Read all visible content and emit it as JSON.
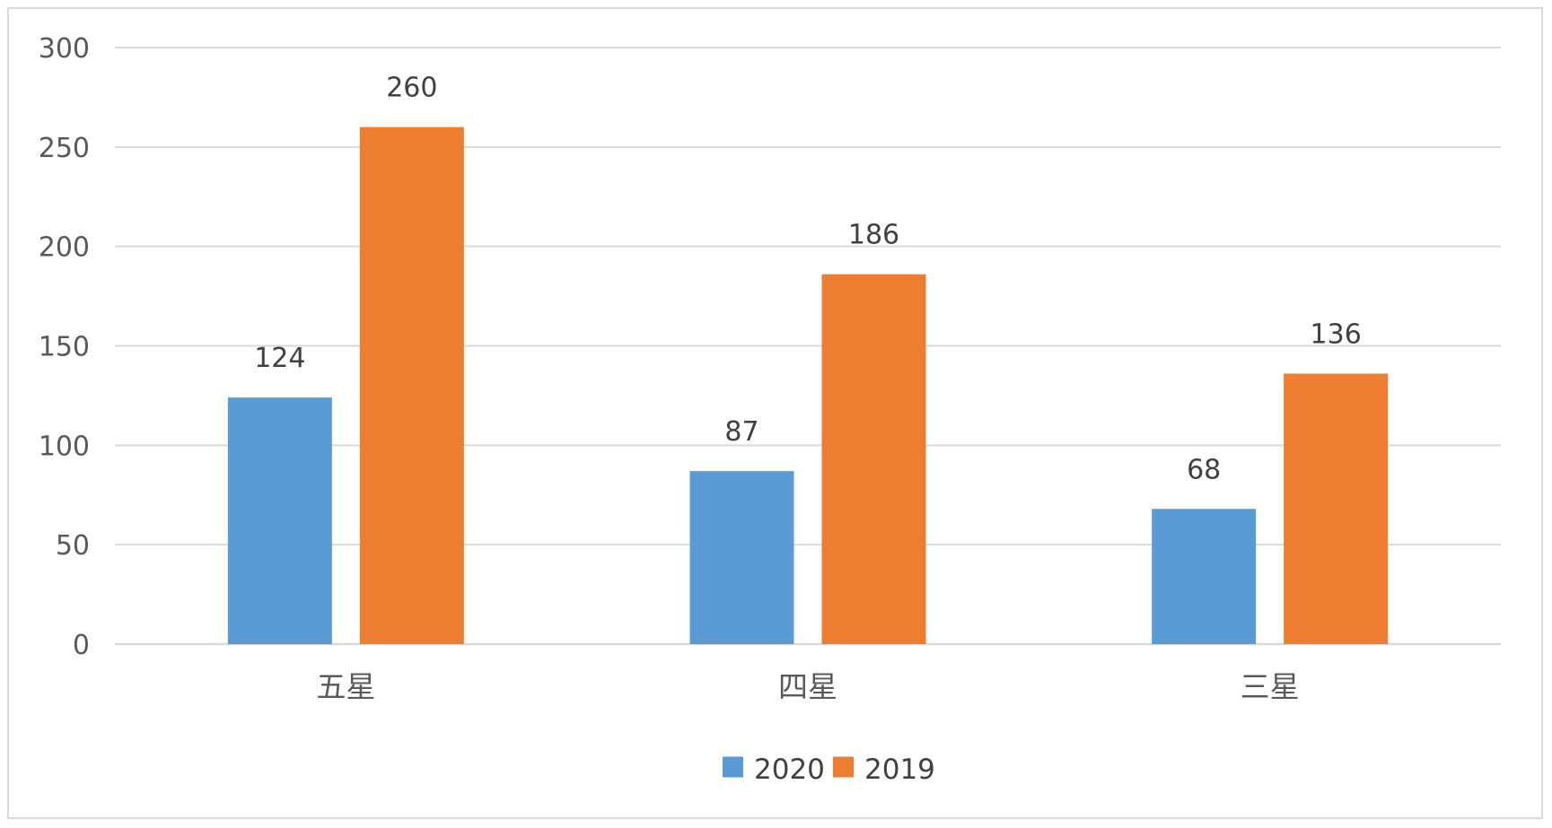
{
  "chart_data": {
    "type": "bar",
    "categories": [
      "五星",
      "四星",
      "三星"
    ],
    "series": [
      {
        "name": "2020",
        "color": "#5b9bd5",
        "values": [
          124,
          87,
          68
        ]
      },
      {
        "name": "2019",
        "color": "#ed7d31",
        "values": [
          260,
          186,
          136
        ]
      }
    ],
    "ylim": [
      0,
      300
    ],
    "yticks": [
      0,
      50,
      100,
      150,
      200,
      250,
      300
    ],
    "grid": true,
    "legend_position": "bottom",
    "gridline_color": "#d9d9d9",
    "text_color": "#404040",
    "label_color": "#595959"
  }
}
